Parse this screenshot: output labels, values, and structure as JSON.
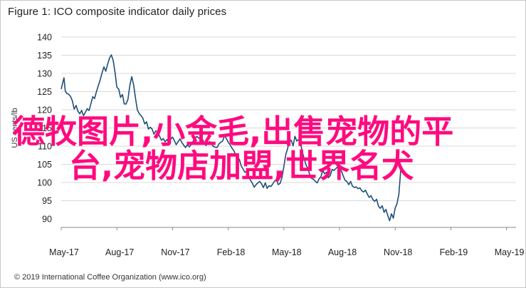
{
  "chart_data": {
    "type": "line",
    "title": "Figure 1: ICO composite indicator daily prices",
    "ylabel": "US cents/lb",
    "xlabel": "",
    "ylim": [
      90,
      140
    ],
    "yticks": [
      90,
      95,
      100,
      105,
      110,
      115,
      120,
      125,
      130,
      135,
      140
    ],
    "xticks": [
      "May-17",
      "Aug-17",
      "Nov-17",
      "Feb-18",
      "May-18",
      "Aug-18",
      "Nov-18",
      "Feb-19",
      "May-19"
    ],
    "grid": true,
    "legend": "none",
    "line_color": "#1f4e79",
    "series": [
      {
        "values": [
          [
            0,
            125.7
          ],
          [
            0.08,
            127.4
          ],
          [
            0.15,
            128.8
          ],
          [
            0.22,
            125.2
          ],
          [
            0.3,
            124.5
          ],
          [
            0.4,
            124.3
          ],
          [
            0.5,
            123.7
          ],
          [
            0.6,
            122.5
          ],
          [
            0.7,
            120.2
          ],
          [
            0.8,
            121.2
          ],
          [
            0.9,
            119.6
          ],
          [
            1.0,
            118.9
          ],
          [
            1.1,
            119.8
          ],
          [
            1.2,
            118.4
          ],
          [
            1.3,
            119.3
          ],
          [
            1.4,
            120.3
          ],
          [
            1.5,
            119.8
          ],
          [
            1.6,
            121.6
          ],
          [
            1.7,
            123.6
          ],
          [
            1.8,
            123.1
          ],
          [
            1.9,
            125.0
          ],
          [
            2.0,
            126.6
          ],
          [
            2.1,
            128.2
          ],
          [
            2.2,
            130.1
          ],
          [
            2.3,
            131.8
          ],
          [
            2.4,
            130.6
          ],
          [
            2.5,
            132.5
          ],
          [
            2.6,
            134.2
          ],
          [
            2.7,
            135.1
          ],
          [
            2.8,
            133.6
          ],
          [
            2.9,
            130.3
          ],
          [
            3.0,
            126.2
          ],
          [
            3.1,
            125.7
          ],
          [
            3.2,
            123.4
          ],
          [
            3.3,
            124.2
          ],
          [
            3.4,
            121.6
          ],
          [
            3.5,
            121.6
          ],
          [
            3.6,
            122.9
          ],
          [
            3.7,
            126.7
          ],
          [
            3.8,
            129.1
          ],
          [
            3.9,
            126.9
          ],
          [
            4.0,
            123.3
          ],
          [
            4.1,
            120.0
          ],
          [
            4.2,
            119.0
          ],
          [
            4.3,
            118.4
          ],
          [
            4.4,
            117.7
          ],
          [
            4.5,
            116.1
          ],
          [
            4.6,
            116.7
          ],
          [
            4.7,
            114.7
          ],
          [
            4.8,
            115.2
          ],
          [
            4.9,
            114.7
          ],
          [
            5.0,
            113.3
          ],
          [
            5.1,
            114.2
          ],
          [
            5.2,
            113.9
          ],
          [
            5.3,
            112.7
          ],
          [
            5.4,
            111.6
          ],
          [
            5.5,
            112.1
          ],
          [
            5.6,
            111.2
          ],
          [
            5.7,
            111.8
          ],
          [
            5.8,
            110.9
          ],
          [
            5.9,
            111.9
          ],
          [
            6.0,
            112.5
          ],
          [
            6.1,
            111.5
          ],
          [
            6.2,
            110.4
          ],
          [
            6.3,
            111.2
          ],
          [
            6.4,
            112.0
          ],
          [
            6.5,
            111.0
          ],
          [
            6.6,
            110.3
          ],
          [
            6.7,
            109.6
          ],
          [
            6.8,
            110.4
          ],
          [
            6.9,
            109.8
          ],
          [
            7.0,
            110.4
          ],
          [
            7.1,
            111.3
          ],
          [
            7.2,
            111.9
          ],
          [
            7.3,
            112.7
          ],
          [
            7.4,
            112.3
          ],
          [
            7.5,
            111.8
          ],
          [
            7.6,
            111.9
          ],
          [
            7.7,
            111.1
          ],
          [
            7.8,
            110.2
          ],
          [
            7.9,
            110.7
          ],
          [
            8.0,
            111.3
          ],
          [
            8.1,
            110.6
          ],
          [
            8.2,
            109.9
          ],
          [
            8.3,
            109.7
          ],
          [
            8.4,
            109.6
          ],
          [
            8.5,
            110.6
          ],
          [
            8.6,
            111.1
          ],
          [
            8.7,
            111.4
          ],
          [
            8.8,
            112.9
          ],
          [
            8.9,
            112.1
          ],
          [
            9.0,
            111.1
          ],
          [
            9.1,
            110.4
          ],
          [
            9.2,
            109.5
          ],
          [
            9.3,
            108.8
          ],
          [
            9.4,
            107.7
          ],
          [
            9.5,
            106.9
          ],
          [
            9.6,
            106.4
          ],
          [
            9.7,
            104.6
          ],
          [
            9.8,
            103.7
          ],
          [
            9.9,
            102.8
          ],
          [
            10.0,
            103.1
          ],
          [
            10.1,
            101.6
          ],
          [
            10.2,
            100.6
          ],
          [
            10.3,
            99.8
          ],
          [
            10.4,
            98.7
          ],
          [
            10.5,
            99.4
          ],
          [
            10.6,
            99.9
          ],
          [
            10.7,
            100.3
          ],
          [
            10.8,
            99.6
          ],
          [
            10.9,
            98.6
          ],
          [
            11.0,
            99.9
          ],
          [
            11.1,
            98.4
          ],
          [
            11.2,
            99.1
          ],
          [
            11.3,
            98.9
          ],
          [
            11.4,
            99.6
          ],
          [
            11.5,
            100.4
          ],
          [
            11.6,
            100.8
          ],
          [
            11.7,
            99.4
          ],
          [
            11.8,
            99.8
          ],
          [
            11.9,
            101.4
          ],
          [
            12.0,
            104.4
          ],
          [
            12.1,
            107.6
          ],
          [
            12.2,
            109.3
          ],
          [
            12.3,
            111.3
          ],
          [
            12.4,
            111.6
          ],
          [
            12.5,
            110.1
          ],
          [
            12.6,
            112.7
          ],
          [
            12.7,
            111.4
          ],
          [
            12.8,
            111.9
          ],
          [
            12.9,
            110.5
          ],
          [
            13.0,
            108.4
          ],
          [
            13.1,
            106.4
          ],
          [
            13.2,
            104.7
          ],
          [
            13.3,
            103.9
          ],
          [
            13.4,
            102.0
          ],
          [
            13.5,
            101.1
          ],
          [
            13.6,
            100.9
          ],
          [
            13.7,
            100.3
          ],
          [
            13.8,
            99.9
          ],
          [
            13.9,
            101.0
          ],
          [
            14.0,
            101.6
          ],
          [
            14.1,
            103.3
          ],
          [
            14.2,
            102.4
          ],
          [
            14.3,
            102.8
          ],
          [
            14.4,
            101.3
          ],
          [
            14.5,
            101.9
          ],
          [
            14.6,
            103.6
          ],
          [
            14.7,
            103.3
          ],
          [
            14.8,
            103.8
          ],
          [
            14.9,
            104.4
          ],
          [
            15.0,
            104.0
          ],
          [
            15.1,
            103.2
          ],
          [
            15.2,
            101.8
          ],
          [
            15.3,
            100.6
          ],
          [
            15.4,
            100.3
          ],
          [
            15.5,
            99.4
          ],
          [
            15.6,
            100.3
          ],
          [
            15.7,
            99.0
          ],
          [
            15.8,
            98.6
          ],
          [
            15.9,
            98.8
          ],
          [
            16.0,
            98.3
          ],
          [
            16.1,
            98.5
          ],
          [
            16.2,
            97.7
          ],
          [
            16.3,
            97.4
          ],
          [
            16.4,
            97.9
          ],
          [
            16.5,
            96.8
          ],
          [
            16.6,
            95.9
          ],
          [
            16.7,
            96.4
          ],
          [
            16.8,
            95.3
          ],
          [
            16.9,
            94.8
          ],
          [
            17.0,
            95.4
          ],
          [
            17.1,
            93.5
          ],
          [
            17.2,
            92.9
          ],
          [
            17.3,
            93.6
          ],
          [
            17.4,
            91.8
          ],
          [
            17.5,
            92.6
          ],
          [
            17.6,
            90.9
          ],
          [
            17.7,
            89.5
          ],
          [
            17.8,
            91.4
          ],
          [
            17.9,
            90.2
          ],
          [
            18.0,
            93.0
          ],
          [
            18.1,
            94.2
          ],
          [
            18.2,
            96.8
          ],
          [
            18.3,
            103.4
          ]
        ]
      }
    ]
  },
  "footer": "© 2019 International Coffee Organization (www.ico.org)",
  "overlay": {
    "line1": "德牧图片,小金毛,出售宠物的平",
    "line2": "台,宠物店加盟,世界名犬",
    "color": "#ff0a7f"
  }
}
